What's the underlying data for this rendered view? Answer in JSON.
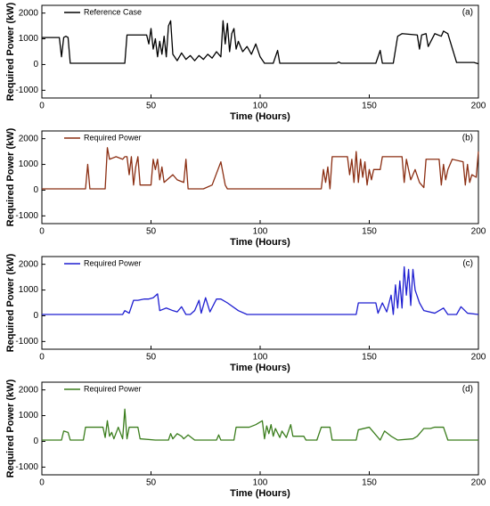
{
  "chart_data": [
    {
      "type": "line",
      "panel_label": "(a)",
      "ylabel": "Required Power (kW)",
      "xlabel": "Time (Hours)",
      "legend": "upper left",
      "xlim": [
        0,
        200
      ],
      "ylim": [
        -1300,
        2300
      ],
      "xticks": [
        0,
        50,
        100,
        150,
        200
      ],
      "yticks": [
        -1000,
        0,
        1000,
        2000
      ],
      "x": [
        0,
        8,
        9,
        10,
        11,
        12,
        13,
        38,
        39,
        48,
        49,
        50,
        51,
        52,
        53,
        54,
        55,
        56,
        57,
        58,
        59,
        60,
        62,
        64,
        66,
        68,
        70,
        72,
        74,
        76,
        78,
        80,
        82,
        83,
        84,
        85,
        86,
        87,
        88,
        89,
        90,
        92,
        94,
        96,
        98,
        100,
        102,
        106,
        108,
        109,
        135,
        136,
        137,
        153,
        155,
        156,
        161,
        163,
        165,
        172,
        173,
        174,
        176,
        177,
        180,
        183,
        184,
        186,
        190,
        198,
        200
      ],
      "series": [
        {
          "name": "Reference Case",
          "color": "#000000",
          "values": [
            1050,
            1050,
            300,
            1050,
            1100,
            1050,
            50,
            50,
            1150,
            1150,
            800,
            1400,
            600,
            1000,
            300,
            900,
            400,
            1100,
            300,
            1500,
            1700,
            400,
            150,
            450,
            200,
            350,
            150,
            350,
            200,
            400,
            250,
            500,
            300,
            1700,
            800,
            1600,
            500,
            1200,
            1400,
            600,
            900,
            500,
            700,
            400,
            800,
            300,
            50,
            50,
            550,
            50,
            50,
            100,
            50,
            50,
            550,
            50,
            50,
            1100,
            1200,
            1150,
            600,
            1150,
            1200,
            700,
            1200,
            1100,
            1300,
            1200,
            80,
            80,
            30
          ]
        }
      ]
    },
    {
      "type": "line",
      "panel_label": "(b)",
      "ylabel": "Required Power (kW)",
      "xlabel": "Time (Hours)",
      "legend": "upper left",
      "xlim": [
        0,
        200
      ],
      "ylim": [
        -1300,
        2300
      ],
      "xticks": [
        0,
        50,
        100,
        150,
        200
      ],
      "yticks": [
        -1000,
        0,
        1000,
        2000
      ],
      "x": [
        0,
        20,
        21,
        22,
        29,
        30,
        31,
        34,
        37,
        38,
        39,
        40,
        41,
        42,
        43,
        44,
        45,
        50,
        51,
        52,
        53,
        54,
        55,
        56,
        60,
        62,
        65,
        66,
        67,
        74,
        78,
        82,
        84,
        85,
        128,
        129,
        130,
        131,
        132,
        133,
        140,
        141,
        142,
        143,
        144,
        145,
        146,
        147,
        148,
        149,
        150,
        151,
        152,
        155,
        156,
        165,
        166,
        167,
        169,
        171,
        173,
        175,
        176,
        182,
        183,
        184,
        185,
        186,
        188,
        193,
        194,
        195,
        196,
        197,
        199,
        200
      ],
      "series": [
        {
          "name": "Required Power",
          "color": "#8b2e12",
          "values": [
            50,
            50,
            1000,
            50,
            50,
            1650,
            1200,
            1300,
            1200,
            1300,
            1300,
            600,
            1300,
            200,
            900,
            1300,
            200,
            200,
            1200,
            800,
            1200,
            400,
            900,
            300,
            600,
            400,
            300,
            1200,
            50,
            50,
            200,
            1100,
            200,
            50,
            50,
            800,
            300,
            900,
            50,
            1300,
            1300,
            600,
            1200,
            300,
            1500,
            300,
            1200,
            500,
            1100,
            200,
            800,
            400,
            800,
            800,
            1300,
            1300,
            300,
            1200,
            400,
            800,
            300,
            100,
            1200,
            1200,
            200,
            1000,
            400,
            800,
            1200,
            1100,
            200,
            1000,
            300,
            600,
            500,
            1500
          ]
        }
      ]
    },
    {
      "type": "line",
      "panel_label": "(c)",
      "ylabel": "Required Power (kW)",
      "xlabel": "Time (Hours)",
      "legend": "upper left",
      "xlim": [
        0,
        200
      ],
      "ylim": [
        -1300,
        2300
      ],
      "xticks": [
        0,
        50,
        100,
        150,
        200
      ],
      "yticks": [
        -1000,
        0,
        1000,
        2000
      ],
      "x": [
        0,
        37,
        38,
        40,
        42,
        44,
        47,
        49,
        51,
        53,
        54,
        57,
        60,
        62,
        64,
        66,
        68,
        70,
        72,
        73,
        75,
        77,
        80,
        82,
        85,
        90,
        94,
        144,
        145,
        153,
        154,
        156,
        158,
        160,
        161,
        162,
        163,
        164,
        165,
        166,
        167,
        168,
        169,
        170,
        171,
        173,
        175,
        180,
        184,
        186,
        190,
        192,
        195,
        200
      ],
      "series": [
        {
          "name": "Required Power",
          "color": "#1f1fd1",
          "values": [
            50,
            50,
            200,
            100,
            600,
            600,
            650,
            650,
            700,
            850,
            200,
            300,
            200,
            150,
            350,
            50,
            50,
            200,
            600,
            100,
            700,
            150,
            650,
            650,
            500,
            200,
            50,
            50,
            500,
            500,
            100,
            500,
            150,
            800,
            50,
            1200,
            300,
            1350,
            300,
            1900,
            800,
            1800,
            400,
            1800,
            1000,
            500,
            200,
            100,
            300,
            50,
            50,
            350,
            100,
            50
          ]
        }
      ]
    },
    {
      "type": "line",
      "panel_label": "(d)",
      "ylabel": "Required Power (kW)",
      "xlabel": "Time (Hours)",
      "legend": "upper left",
      "xlim": [
        0,
        200
      ],
      "ylim": [
        -1300,
        2300
      ],
      "xticks": [
        0,
        50,
        100,
        150,
        200
      ],
      "yticks": [
        -1000,
        0,
        1000,
        2000
      ],
      "x": [
        0,
        9,
        10,
        12,
        13,
        19,
        20,
        28,
        29,
        30,
        31,
        32,
        33,
        35,
        37,
        38,
        39,
        40,
        44,
        45,
        52,
        58,
        59,
        60,
        62,
        64,
        65,
        67,
        70,
        80,
        81,
        82,
        88,
        89,
        95,
        98,
        101,
        102,
        103,
        104,
        105,
        106,
        107,
        109,
        110,
        112,
        114,
        115,
        120,
        121,
        126,
        128,
        132,
        133,
        144,
        145,
        150,
        152,
        155,
        157,
        160,
        163,
        170,
        172,
        175,
        178,
        180,
        184,
        186,
        200
      ],
      "series": [
        {
          "name": "Required Power",
          "color": "#3a7d1c",
          "values": [
            50,
            50,
            400,
            350,
            50,
            50,
            550,
            550,
            150,
            800,
            200,
            350,
            100,
            550,
            100,
            1250,
            100,
            550,
            550,
            100,
            50,
            50,
            300,
            100,
            300,
            200,
            100,
            250,
            50,
            50,
            250,
            50,
            50,
            550,
            550,
            650,
            800,
            100,
            600,
            300,
            650,
            200,
            500,
            150,
            400,
            150,
            650,
            200,
            200,
            50,
            50,
            550,
            550,
            50,
            50,
            450,
            550,
            350,
            50,
            400,
            200,
            50,
            100,
            200,
            500,
            500,
            550,
            550,
            50,
            50
          ]
        }
      ]
    }
  ]
}
